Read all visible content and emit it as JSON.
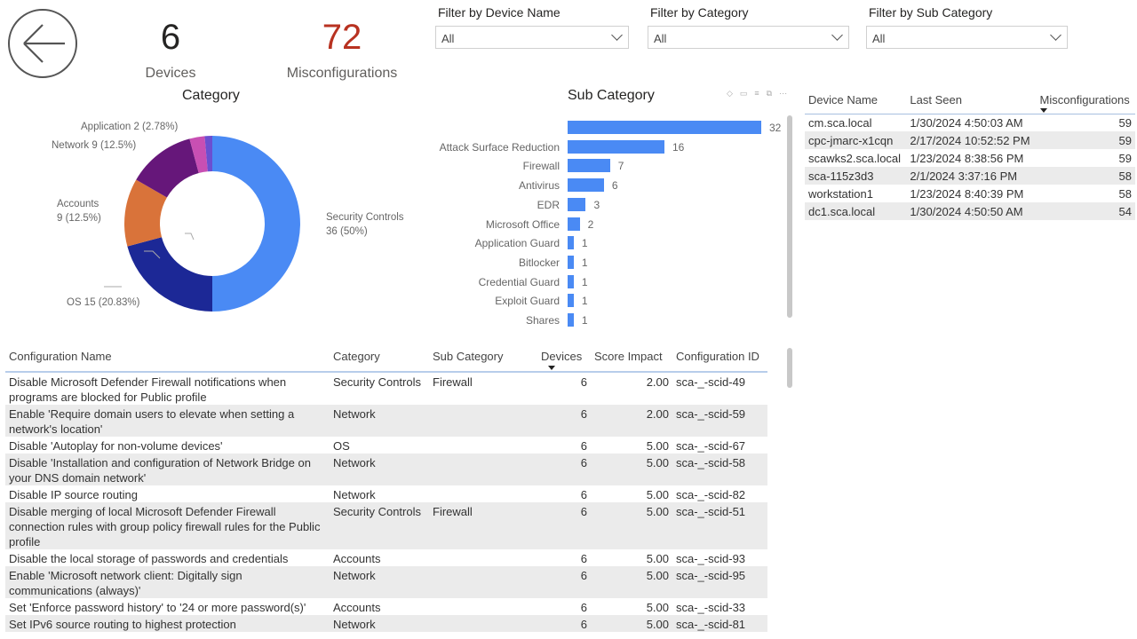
{
  "kpis": {
    "devices": {
      "value": "6",
      "label": "Devices"
    },
    "misconfigurations": {
      "value": "72",
      "label": "Misconfigurations",
      "color": "#b83221"
    }
  },
  "filters": [
    {
      "label": "Filter by Device Name",
      "value": "All"
    },
    {
      "label": "Filter by Category",
      "value": "All"
    },
    {
      "label": "Filter by Sub Category",
      "value": "All"
    }
  ],
  "chart_data": [
    {
      "type": "pie",
      "title": "Category",
      "donut": true,
      "slices": [
        {
          "name": "Security Controls",
          "value": 36,
          "percent": "50%",
          "label_line1": "Security Controls",
          "label_line2": "36 (50%)",
          "color": "#4a8af4"
        },
        {
          "name": "OS",
          "value": 15,
          "percent": "20.83%",
          "label_line1": "OS 15 (20.83%)",
          "label_line2": "",
          "color": "#1c2896"
        },
        {
          "name": "Accounts",
          "value": 9,
          "percent": "12.5%",
          "label_line1": "Accounts",
          "label_line2": "9 (12.5%)",
          "color": "#d9733a"
        },
        {
          "name": "Network",
          "value": 9,
          "percent": "12.5%",
          "label_line1": "Network 9 (12.5%)",
          "label_line2": "",
          "color": "#66177a"
        },
        {
          "name": "Application",
          "value": 2,
          "percent": "2.78%",
          "label_line1": "Application 2 (2.78%)",
          "label_line2": "",
          "color": "#c84fb3"
        },
        {
          "name": "",
          "value": 1,
          "percent": "",
          "label_line1": "",
          "label_line2": "",
          "color": "#6b4fd0"
        }
      ]
    },
    {
      "type": "bar",
      "orientation": "horizontal",
      "title": "Sub Category",
      "categories": [
        "",
        "Attack Surface Reduction",
        "Firewall",
        "Antivirus",
        "EDR",
        "Microsoft Office",
        "Application Guard",
        "Bitlocker",
        "Credential Guard",
        "Exploit Guard",
        "Shares"
      ],
      "values": [
        32,
        16,
        7,
        6,
        3,
        2,
        1,
        1,
        1,
        1,
        1
      ],
      "xlim": [
        0,
        32
      ],
      "color": "#4a8af4"
    }
  ],
  "devices_table": {
    "headers": [
      "Device Name",
      "Last Seen",
      "Misconfigurations"
    ],
    "rows": [
      [
        "cm.sca.local",
        "1/30/2024 4:50:03 AM",
        "59"
      ],
      [
        "cpc-jmarc-x1cqn",
        "2/17/2024 10:52:52 PM",
        "59"
      ],
      [
        "scawks2.sca.local",
        "1/23/2024 8:38:56 PM",
        "59"
      ],
      [
        "sca-115z3d3",
        "2/1/2024 3:37:16 PM",
        "58"
      ],
      [
        "workstation1",
        "1/23/2024 8:40:39 PM",
        "58"
      ],
      [
        "dc1.sca.local",
        "1/30/2024 4:50:50 AM",
        "54"
      ]
    ]
  },
  "config_table": {
    "headers": [
      "Configuration Name",
      "Category",
      "Sub Category",
      "Devices",
      "Score Impact",
      "Configuration ID"
    ],
    "rows": [
      [
        "Disable Microsoft Defender Firewall notifications when programs are blocked for Public profile",
        "Security Controls",
        "Firewall",
        "6",
        "2.00",
        "sca-_-scid-49"
      ],
      [
        "Enable 'Require domain users to elevate when setting a network's location'",
        "Network",
        "",
        "6",
        "2.00",
        "sca-_-scid-59"
      ],
      [
        "Disable 'Autoplay for non-volume devices'",
        "OS",
        "",
        "6",
        "5.00",
        "sca-_-scid-67"
      ],
      [
        "Disable 'Installation and configuration of Network Bridge on your DNS domain network'",
        "Network",
        "",
        "6",
        "5.00",
        "sca-_-scid-58"
      ],
      [
        "Disable IP source routing",
        "Network",
        "",
        "6",
        "5.00",
        "sca-_-scid-82"
      ],
      [
        "Disable merging of local Microsoft Defender Firewall connection rules with group policy firewall rules for the Public profile",
        "Security Controls",
        "Firewall",
        "6",
        "5.00",
        "sca-_-scid-51"
      ],
      [
        "Disable the local storage of passwords and credentials",
        "Accounts",
        "",
        "6",
        "5.00",
        "sca-_-scid-93"
      ],
      [
        "Enable 'Microsoft network client: Digitally sign communications (always)'",
        "Network",
        "",
        "6",
        "5.00",
        "sca-_-scid-95"
      ],
      [
        "Set 'Enforce password history' to '24 or more password(s)'",
        "Accounts",
        "",
        "6",
        "5.00",
        "sca-_-scid-33"
      ],
      [
        "Set IPv6 source routing to highest protection",
        "Network",
        "",
        "6",
        "5.00",
        "sca-_-scid-81"
      ]
    ]
  }
}
